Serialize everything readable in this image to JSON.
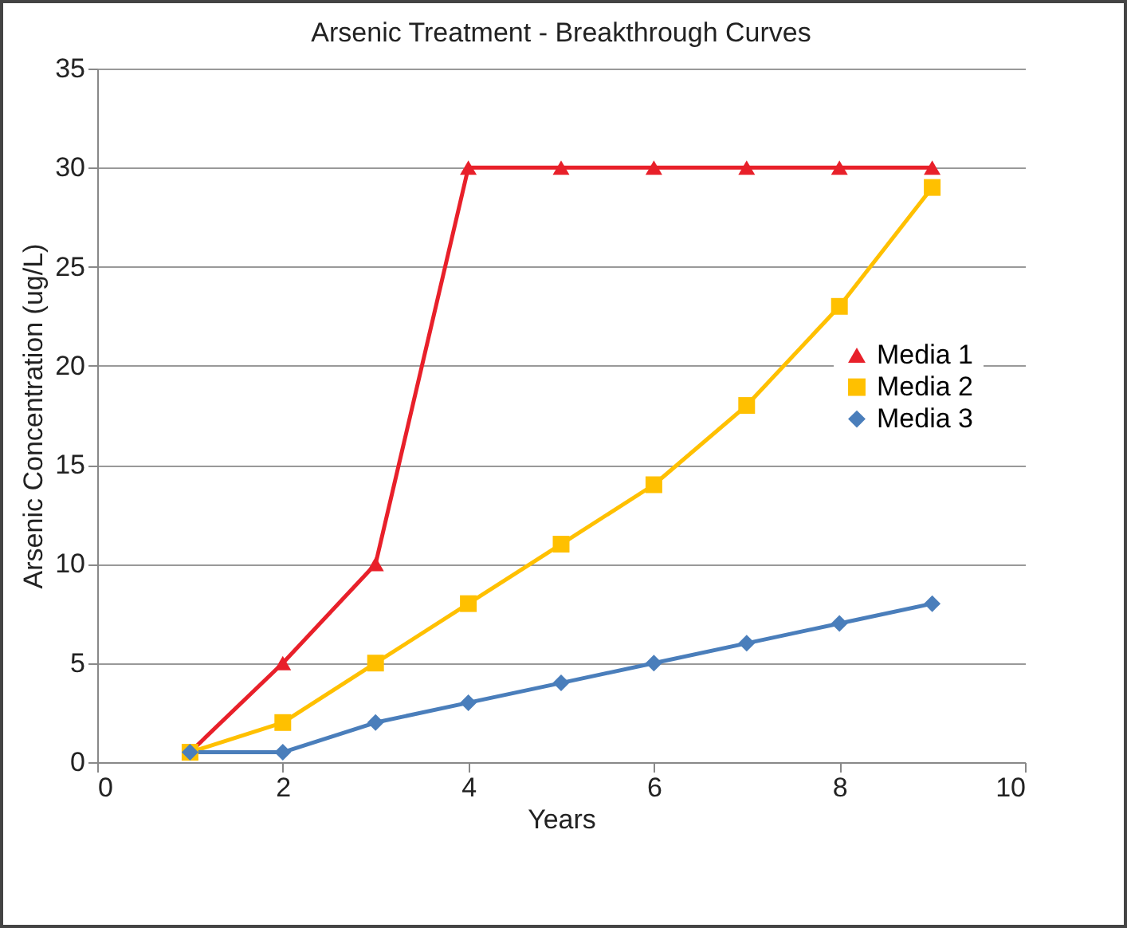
{
  "chart_data": {
    "type": "line",
    "title": "Arsenic Treatment - Breakthrough Curves",
    "xlabel": "Years",
    "ylabel": "Arsenic Concentration (ug/L)",
    "x": [
      1,
      2,
      3,
      4,
      5,
      6,
      7,
      8,
      9
    ],
    "series": [
      {
        "name": "Media 1",
        "color": "#e8202a",
        "marker": "triangle",
        "values": [
          0.5,
          5,
          10,
          30,
          30,
          30,
          30,
          30,
          30
        ]
      },
      {
        "name": "Media 2",
        "color": "#ffc000",
        "marker": "square",
        "values": [
          0.5,
          2,
          5,
          8,
          11,
          14,
          18,
          23,
          29
        ]
      },
      {
        "name": "Media 3",
        "color": "#4a7ebb",
        "marker": "diamond",
        "values": [
          0.5,
          0.5,
          2,
          3,
          4,
          5,
          6,
          7,
          8
        ]
      }
    ],
    "xlim": [
      0,
      10
    ],
    "xticks": [
      0,
      2,
      4,
      6,
      8,
      10
    ],
    "ylim": [
      0,
      35
    ],
    "yticks": [
      0,
      5,
      10,
      15,
      20,
      25,
      30,
      35
    ],
    "grid": "y",
    "legend": "right",
    "line_style": "solid"
  }
}
